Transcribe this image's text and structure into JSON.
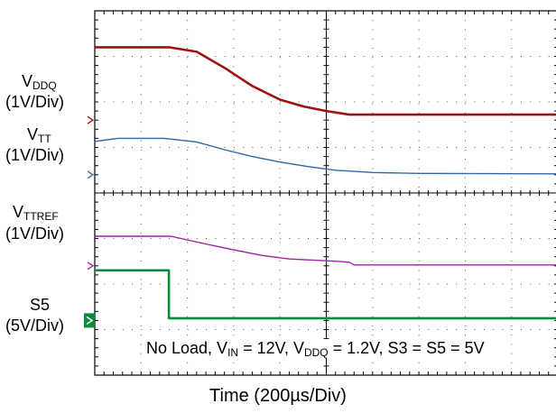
{
  "chart_data": {
    "type": "line",
    "xlabel": "Time (200µs/Div)",
    "divisions": {
      "x": 10,
      "y": 8
    },
    "series": [
      {
        "label_main": "V",
        "label_sub": "DDQ",
        "scale": "(1V/Div)",
        "color": "#a01010",
        "ground_div": 2.4,
        "x": [
          0,
          1.6,
          2.2,
          2.8,
          3.4,
          4.0,
          4.5,
          5.0,
          5.5,
          6.0,
          10
        ],
        "y": [
          1.6,
          1.6,
          1.5,
          1.15,
          0.75,
          0.45,
          0.3,
          0.2,
          0.12,
          0.12,
          0.12
        ]
      },
      {
        "label_main": "V",
        "label_sub": "TT",
        "scale": "(1V/Div)",
        "color": "#2f68a8",
        "ground_div": 3.6,
        "x": [
          0,
          0.5,
          1.5,
          2.2,
          2.8,
          3.4,
          4.0,
          4.6,
          5.2,
          6.0,
          7.0,
          10
        ],
        "y": [
          0.73,
          0.8,
          0.8,
          0.72,
          0.55,
          0.4,
          0.28,
          0.18,
          0.1,
          0.05,
          0.03,
          0.02
        ]
      },
      {
        "label_main": "V",
        "label_sub": "TTREF",
        "scale": "(1V/Div)",
        "color": "#a020a0",
        "ground_div": 5.6,
        "x": [
          0,
          1.65,
          2.3,
          3.0,
          3.6,
          4.2,
          4.8,
          5.2,
          5.5,
          5.6,
          10
        ],
        "y": [
          0.65,
          0.65,
          0.5,
          0.35,
          0.23,
          0.15,
          0.12,
          0.1,
          0.08,
          0.02,
          0.02
        ]
      },
      {
        "label_main": "S5",
        "label_sub": "",
        "scale": "(5V/Div)",
        "color": "#0a8a3a",
        "ground_div": 6.8,
        "x": [
          0,
          1.6,
          1.6,
          10
        ],
        "y": [
          1.1,
          1.1,
          0.05,
          0.05
        ]
      }
    ],
    "annotation": {
      "parts": [
        "No Load, V",
        "IN",
        " = 12V, V",
        "DDQ",
        " = 1.2V, S3 = S5 = 5V"
      ]
    }
  }
}
